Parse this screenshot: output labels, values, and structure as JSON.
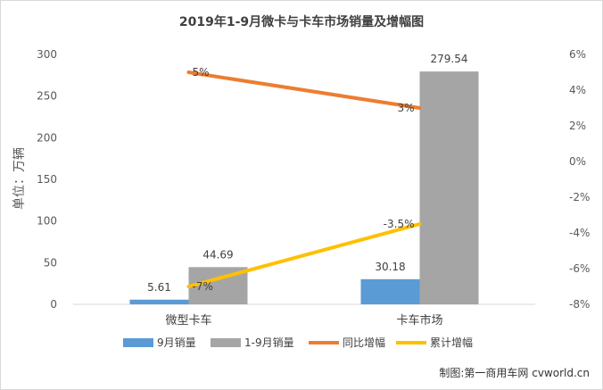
{
  "chart_data": {
    "type": "bar+line",
    "title": "2019年1-9月微卡与卡车市场销量及增幅图",
    "ylabel": "单位：万辆",
    "categories": [
      "微型卡车",
      "卡车市场"
    ],
    "ylim": [
      0,
      300
    ],
    "y_ticks": [
      "0",
      "50",
      "100",
      "150",
      "200",
      "250",
      "300"
    ],
    "y2lim": [
      -8,
      6
    ],
    "y2_ticks": [
      "-8%",
      "-6%",
      "-4%",
      "-2%",
      "0%",
      "2%",
      "4%",
      "6%"
    ],
    "bar_series": [
      {
        "name": "9月销量",
        "color": "#5b9bd5",
        "values": [
          5.61,
          30.18
        ],
        "labels": [
          "5.61",
          "30.18"
        ]
      },
      {
        "name": "1-9月销量",
        "color": "#a5a5a5",
        "values": [
          44.69,
          279.54
        ],
        "labels": [
          "44.69",
          "279.54"
        ]
      }
    ],
    "line_series": [
      {
        "name": "同比增幅",
        "color": "#ed7d31",
        "values": [
          5,
          3
        ],
        "labels": [
          "5%",
          "3%"
        ]
      },
      {
        "name": "累计增幅",
        "color": "#ffc000",
        "values": [
          -7,
          -3.5
        ],
        "labels": [
          "-7%",
          "-3.5%"
        ]
      }
    ],
    "legend_position": "bottom",
    "grid": false
  },
  "credit": "制图:第一商用车网 cvworld.cn"
}
